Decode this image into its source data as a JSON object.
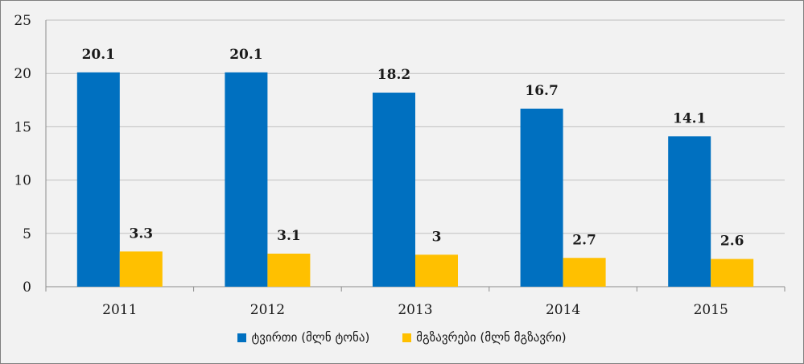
{
  "chart_data": {
    "type": "bar",
    "categories": [
      "2011",
      "2012",
      "2013",
      "2014",
      "2015"
    ],
    "series": [
      {
        "name": "ტვირთი (მლნ ტონა)",
        "color": "#0070c0",
        "values": [
          20.1,
          20.1,
          18.2,
          16.7,
          14.1
        ],
        "labels": [
          "20.1",
          "20.1",
          "18.2",
          "16.7",
          "14.1"
        ]
      },
      {
        "name": "მგზავრები (მლნ მგზავრი)",
        "color": "#ffc000",
        "values": [
          3.3,
          3.1,
          3,
          2.7,
          2.6
        ],
        "labels": [
          "3.3",
          "3.1",
          "3",
          "2.7",
          "2.6"
        ]
      }
    ],
    "ylim": [
      0,
      25
    ],
    "yticks": [
      "0",
      "5",
      "10",
      "15",
      "20",
      "25"
    ],
    "grid": true,
    "legend_position": "bottom",
    "title": "",
    "xlabel": "",
    "ylabel": ""
  }
}
